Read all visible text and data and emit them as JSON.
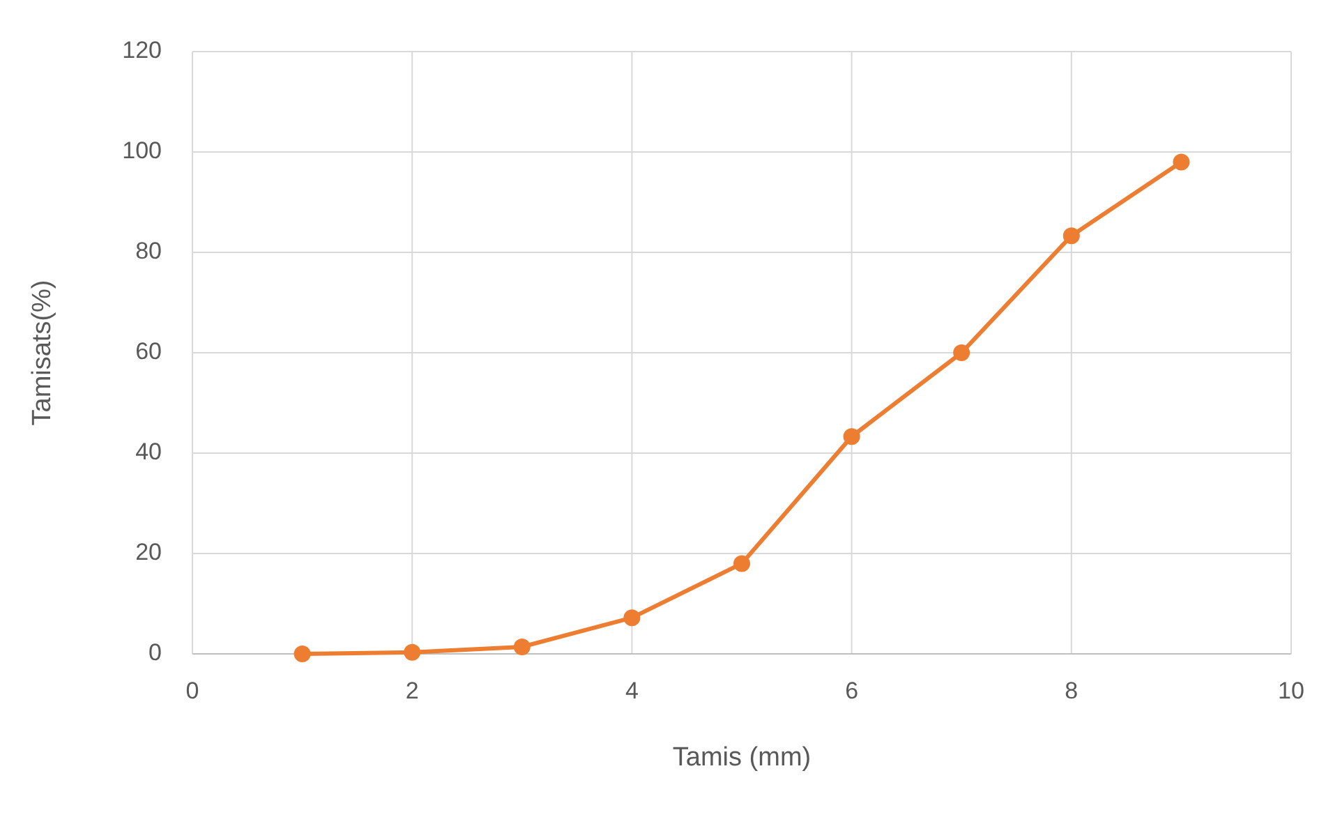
{
  "chart_data": {
    "type": "line",
    "xlabel": "Tamis (mm)",
    "ylabel": "Tamisats(%)",
    "x": [
      1,
      2,
      3,
      4,
      5,
      6,
      7,
      8,
      9
    ],
    "series": [
      {
        "color": "#ed7d31",
        "values": [
          0,
          0.3,
          1.4,
          7.2,
          18,
          43.3,
          60,
          83.3,
          98
        ]
      }
    ],
    "xlim": [
      0,
      10
    ],
    "xticks": [
      0,
      2,
      4,
      6,
      8,
      10
    ],
    "ylim": [
      0,
      120
    ],
    "yticks": [
      0,
      20,
      40,
      60,
      80,
      100,
      120
    ],
    "grid": true,
    "marker": "circle",
    "line_style": "solid"
  }
}
